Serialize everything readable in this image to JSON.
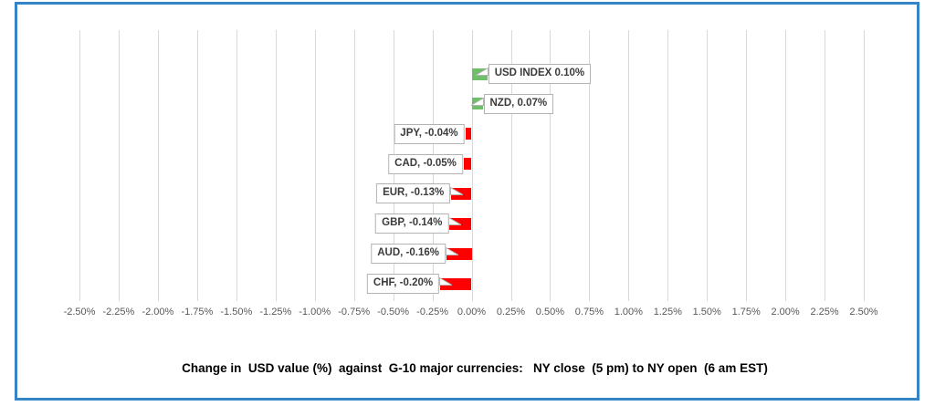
{
  "chart": {
    "frame_border_color": "#3484C6",
    "background_color": "#FFFFFF"
  },
  "chart_data": {
    "type": "bar",
    "orientation": "horizontal",
    "title": "Change in  USD value (%)  against  G-10 major currencies:   NY close  (5 pm) to NY open  (6 am EST)",
    "xlabel": "",
    "ylabel": "",
    "categories": [
      "USD INDEX",
      "NZD",
      "JPY",
      "CAD",
      "EUR",
      "GBP",
      "AUD",
      "CHF"
    ],
    "values": [
      0.1,
      0.07,
      -0.04,
      -0.05,
      -0.13,
      -0.14,
      -0.16,
      -0.2
    ],
    "data_labels": [
      "USD INDEX 0.10%",
      "NZD, 0.07%",
      "JPY, -0.04%",
      "CAD, -0.05%",
      "EUR, -0.13%",
      "GBP, -0.14%",
      "AUD, -0.16%",
      "CHF, -0.20%"
    ],
    "xlim": [
      -2.5,
      2.5
    ],
    "x_tick_step": 0.25,
    "x_tick_labels": [
      "-2.50%",
      "-2.25%",
      "-2.00%",
      "-1.75%",
      "-1.50%",
      "-1.25%",
      "-1.00%",
      "-0.75%",
      "-0.50%",
      "-0.25%",
      "0.00%",
      "0.25%",
      "0.50%",
      "0.75%",
      "1.00%",
      "1.25%",
      "1.50%",
      "1.75%",
      "2.00%",
      "2.25%",
      "2.50%"
    ],
    "grid": "vertical",
    "legend": "none",
    "positive_color": "#6FBE6A",
    "negative_color": "#FF0000",
    "gridline_color": "#D9D9D9",
    "tick_label_color": "#595959",
    "data_label_border_color": "#B3B3B3",
    "data_label_text_color": "#3B3B3B"
  }
}
